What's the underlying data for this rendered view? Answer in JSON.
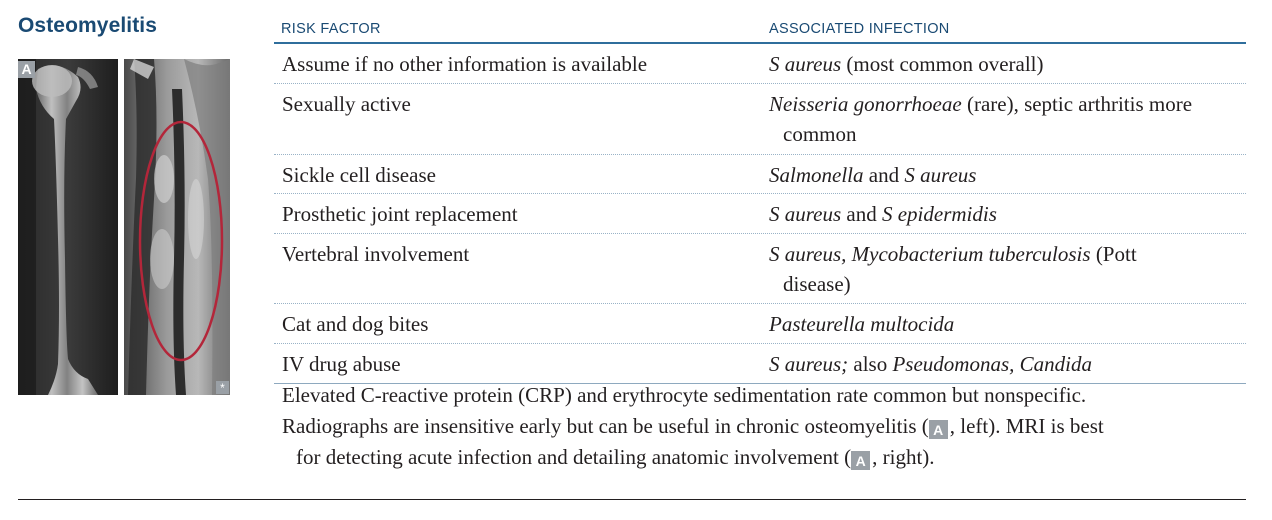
{
  "section_title": "Osteomyelitis",
  "image_label": "A",
  "asterisk": "*",
  "table": {
    "headers": {
      "risk": "RISK FACTOR",
      "assoc": "ASSOCIATED INFECTION"
    },
    "rows": [
      {
        "risk": "Assume if no other information is available",
        "assoc": {
          "italic1": "S aureus",
          "plain1": " (most common overall)"
        }
      },
      {
        "risk": "Sexually active",
        "assoc": {
          "italic1": "Neisseria gonorrhoeae",
          "plain1": " (rare), septic arthritis more",
          "line2": "common"
        }
      },
      {
        "risk": "Sickle cell disease",
        "assoc": {
          "italic1": "Salmonella",
          "plain1": " and ",
          "italic2": "S aureus"
        }
      },
      {
        "risk": "Prosthetic joint replacement",
        "assoc": {
          "italic1": "S aureus",
          "plain1": " and ",
          "italic2": "S epidermidis"
        }
      },
      {
        "risk": "Vertebral involvement",
        "assoc": {
          "italic1": "S aureus, Mycobacterium tuberculosis",
          "plain1": " (Pott",
          "line2": "disease)"
        }
      },
      {
        "risk": "Cat and dog bites",
        "assoc": {
          "italic1": "Pasteurella multocida"
        }
      },
      {
        "risk": "IV drug abuse",
        "assoc": {
          "italic1": "S aureus;",
          "plain1": " also ",
          "italic2": "Pseudomonas, Candida"
        }
      }
    ]
  },
  "notes": {
    "line1": "Elevated C-reactive protein (CRP) and erythrocyte sedimentation rate common but nonspecific.",
    "line2_a": "Radiographs are insensitive early but can be useful in chronic osteomyelitis (",
    "line2_b": ", left). MRI is best",
    "line3_a": "for detecting acute infection and detailing anatomic involvement (",
    "line3_b": ", right)."
  }
}
